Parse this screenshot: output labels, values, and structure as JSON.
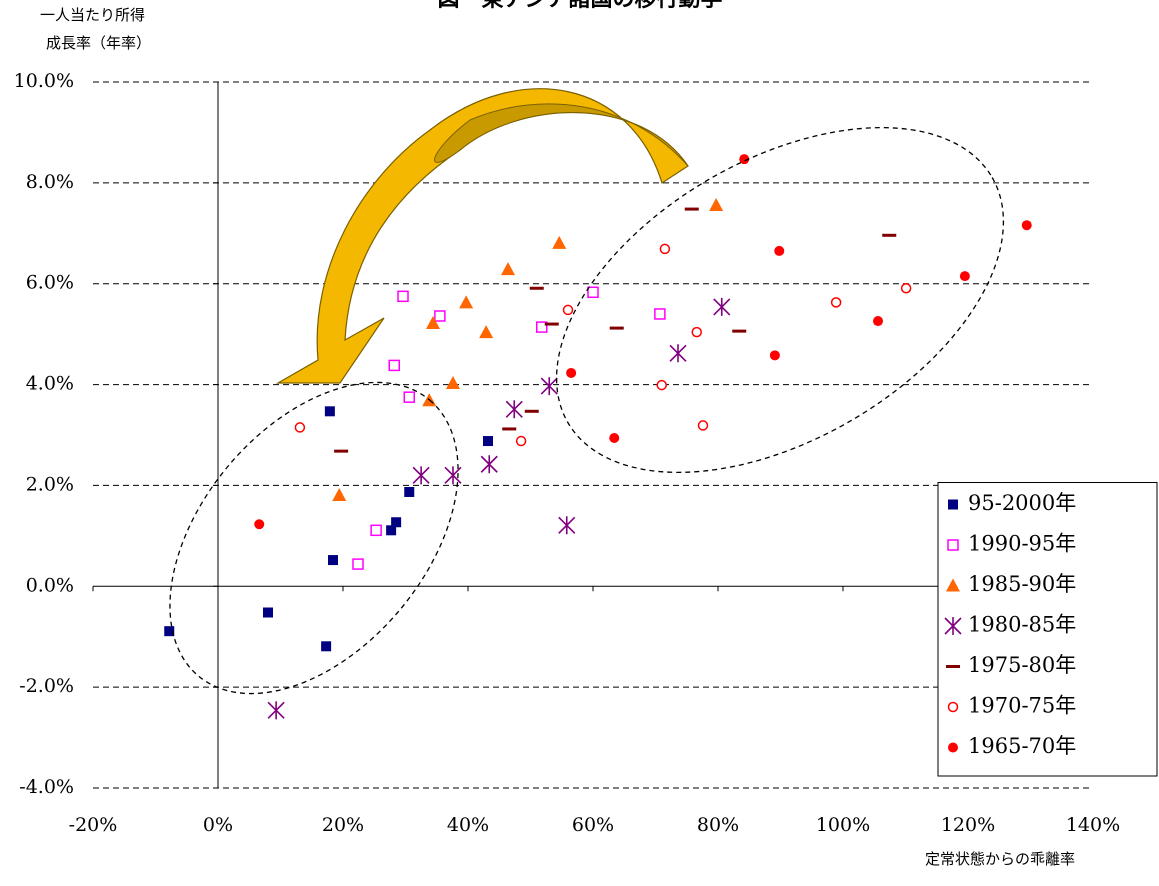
{
  "chart_data": {
    "type": "scatter",
    "title": "図　東アジア諸国の移行動学",
    "y_label": [
      "一人当たり所得",
      "成長率（年率）"
    ],
    "x_label": "定常状態からの乖離率",
    "xlim": [
      -20,
      140
    ],
    "ylim": [
      -4,
      10
    ],
    "xticks": [
      {
        "value": -20,
        "label": "-20%"
      },
      {
        "value": 0,
        "label": "0%"
      },
      {
        "value": 20,
        "label": "20%"
      },
      {
        "value": 40,
        "label": "40%"
      },
      {
        "value": 60,
        "label": "60%"
      },
      {
        "value": 80,
        "label": "80%"
      },
      {
        "value": 100,
        "label": "100%"
      },
      {
        "value": 120,
        "label": "120%"
      },
      {
        "value": 140,
        "label": "140%"
      }
    ],
    "yticks": [
      {
        "value": -4,
        "label": "-4.0%"
      },
      {
        "value": -2,
        "label": "-2.0%"
      },
      {
        "value": 0,
        "label": "0.0%"
      },
      {
        "value": 2,
        "label": "2.0%"
      },
      {
        "value": 4,
        "label": "4.0%"
      },
      {
        "value": 6,
        "label": "6.0%"
      },
      {
        "value": 8,
        "label": "8.0%"
      },
      {
        "value": 10,
        "label": "10.0%"
      }
    ],
    "grid": true,
    "legend": "lower right",
    "series": [
      {
        "name": "95-2000年",
        "color": "#000080",
        "marker": "square",
        "x": [
          -7.8,
          8.0,
          17.3,
          17.9,
          18.4,
          27.7,
          28.5,
          30.6,
          43.2
        ],
        "values": [
          -0.89,
          -0.52,
          -1.19,
          3.47,
          0.52,
          1.11,
          1.27,
          1.87,
          2.88
        ]
      },
      {
        "name": "1990-95年",
        "color": "#ff00ff",
        "marker": "open-square",
        "x": [
          29.6,
          35.5,
          28.2,
          30.6,
          25.3,
          22.4,
          51.8,
          60.0,
          70.7
        ],
        "values": [
          5.75,
          5.36,
          4.38,
          3.75,
          1.11,
          0.44,
          5.14,
          5.83,
          5.4
        ]
      },
      {
        "name": "1985-90年",
        "color": "#ff6600",
        "marker": "triangle",
        "x": [
          46.4,
          54.6,
          39.7,
          34.4,
          42.9,
          37.6,
          33.8,
          19.4,
          79.7
        ],
        "values": [
          6.29,
          6.81,
          5.63,
          5.22,
          5.04,
          4.03,
          3.69,
          1.81,
          7.56
        ]
      },
      {
        "name": "1980-85年",
        "color": "#800080",
        "marker": "asterisk",
        "x": [
          9.3,
          32.5,
          37.6,
          43.4,
          47.4,
          53.0,
          55.8,
          73.6,
          80.6
        ],
        "values": [
          -2.46,
          2.2,
          2.2,
          2.42,
          3.51,
          3.97,
          1.21,
          4.62,
          5.54
        ]
      },
      {
        "name": "1975-80年",
        "color": "#800000",
        "marker": "dash",
        "x": [
          19.7,
          46.6,
          50.2,
          53.4,
          51.0,
          63.8,
          75.8,
          83.4,
          107.4
        ],
        "values": [
          2.68,
          3.12,
          3.47,
          5.2,
          5.91,
          5.12,
          7.48,
          5.06,
          6.96
        ]
      },
      {
        "name": "1970-75年",
        "color": "#ff0000",
        "marker": "open-circle",
        "x": [
          13.1,
          48.5,
          56.0,
          71.5,
          76.6,
          71.0,
          77.6,
          98.9,
          110.1
        ],
        "values": [
          3.15,
          2.88,
          5.48,
          6.69,
          5.04,
          3.99,
          3.19,
          5.63,
          5.91
        ]
      },
      {
        "name": "1965-70年",
        "color": "#ff0000",
        "marker": "circle",
        "x": [
          6.6,
          56.5,
          63.4,
          84.2,
          89.8,
          89.1,
          105.6,
          119.5,
          129.4
        ],
        "values": [
          1.23,
          4.23,
          2.94,
          8.47,
          6.65,
          4.58,
          5.26,
          6.15,
          7.16
        ]
      }
    ]
  }
}
